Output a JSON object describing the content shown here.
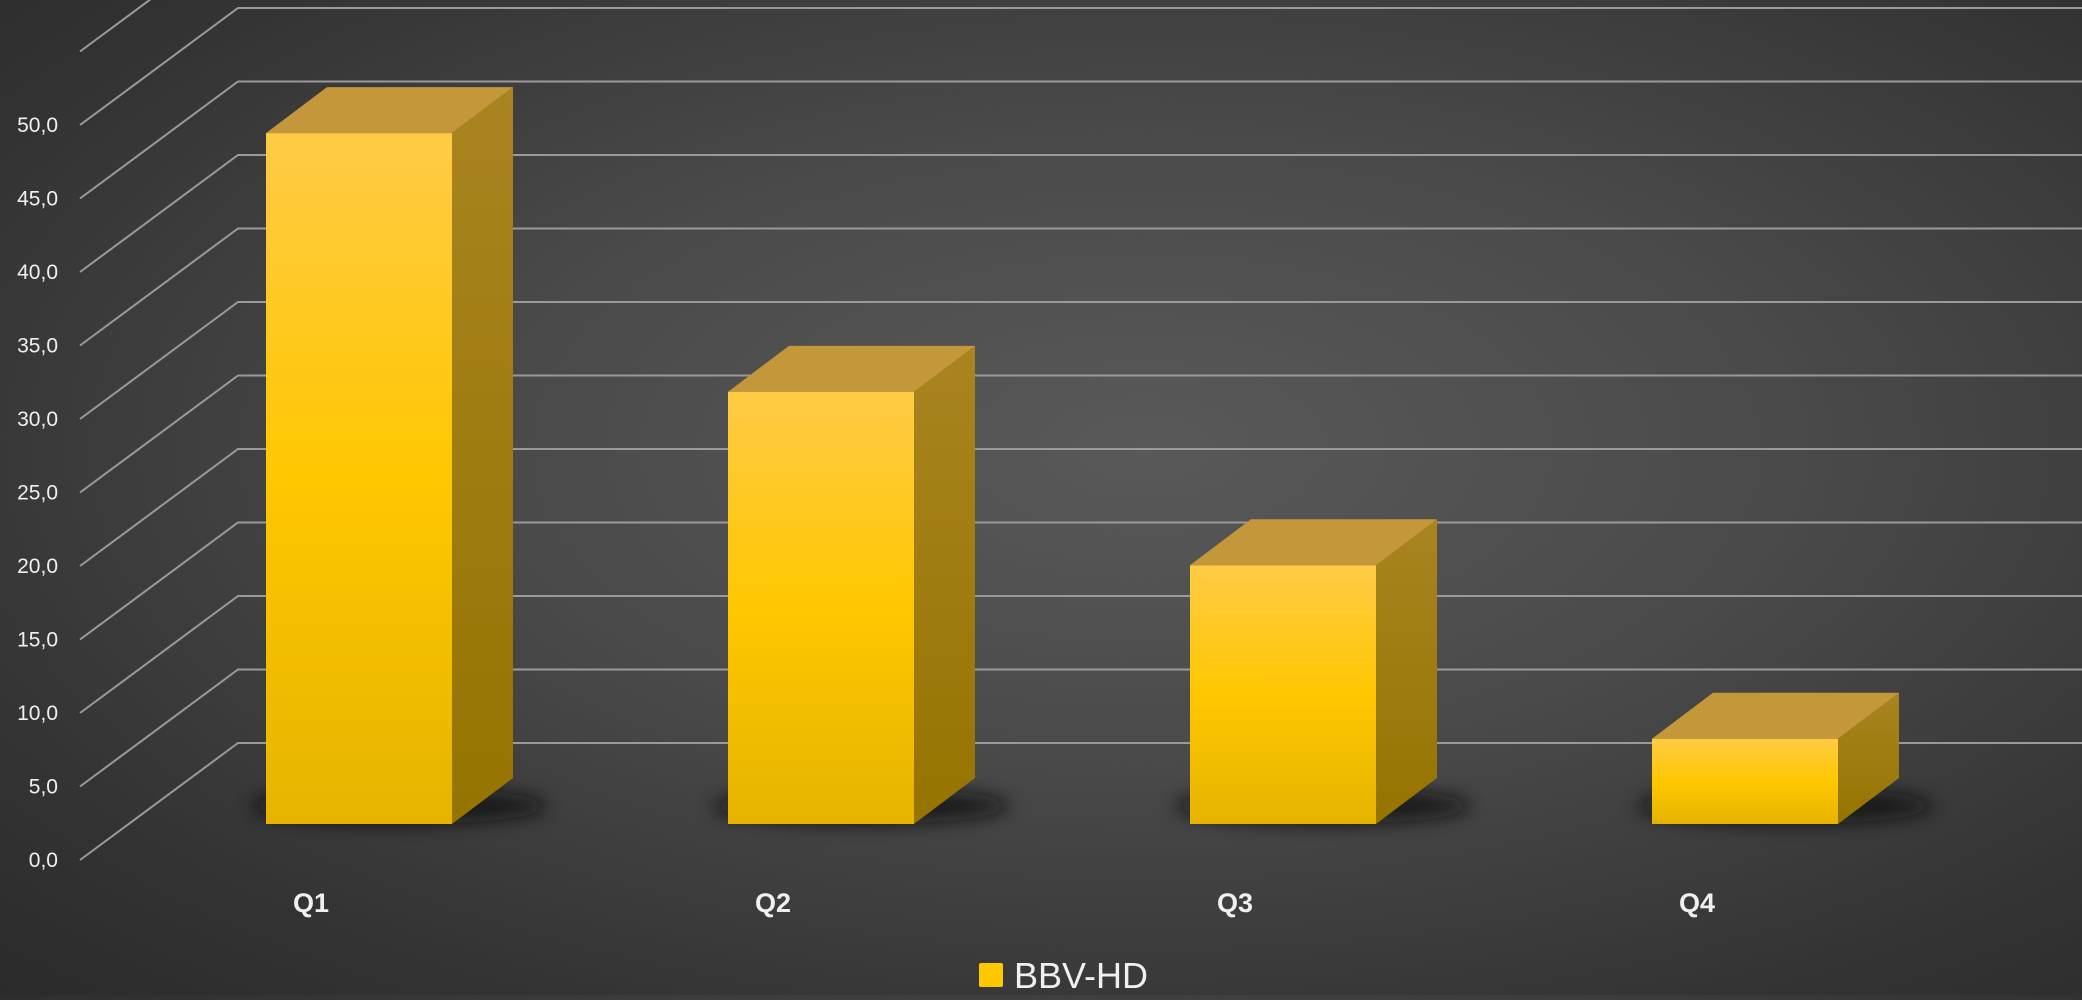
{
  "chart_data": {
    "type": "bar",
    "categories": [
      "Q1",
      "Q2",
      "Q3",
      "Q4"
    ],
    "series": [
      {
        "name": "BBV-HD",
        "values": [
          47.0,
          29.4,
          17.6,
          5.8
        ]
      }
    ],
    "ylim": [
      0,
      55
    ],
    "y_ticks": [
      "0,0",
      "5,0",
      "10,0",
      "15,0",
      "20,0",
      "25,0",
      "30,0",
      "35,0",
      "40,0",
      "45,0",
      "50,0"
    ],
    "grid": true,
    "legend_position": "bottom",
    "colors": {
      "bar_front_top": "#ffcb45",
      "bar_front_mid": "#ffc700",
      "bar_front_bottom": "#e6b400",
      "bar_side": "#9c7a00",
      "bar_top": "#c4973a",
      "gridline": "#9a9a9a",
      "text": "#f0f0f0",
      "legend_swatch": "#ffc700"
    }
  }
}
